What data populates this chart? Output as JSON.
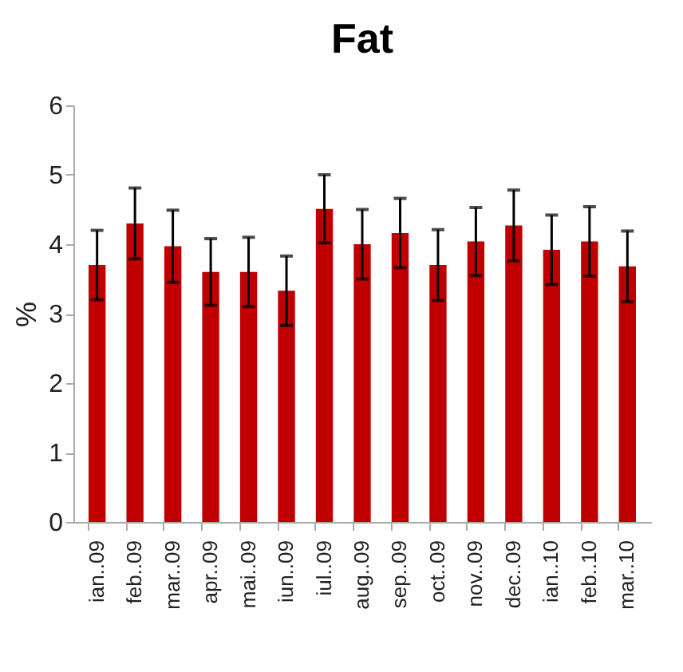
{
  "chart_data": {
    "type": "bar",
    "title": "Fat",
    "ylabel": "%",
    "categories": [
      "ian..09",
      "feb..09",
      "mar..09",
      "apr..09",
      "mai..09",
      "iun..09",
      "iul..09",
      "aug..09",
      "sep..09",
      "oct..09",
      "nov..09",
      "dec..09",
      "ian..10",
      "feb..10",
      "mar..10"
    ],
    "values": [
      3.7,
      4.3,
      3.97,
      3.6,
      3.6,
      3.33,
      4.51,
      4.0,
      4.16,
      3.7,
      4.04,
      4.27,
      3.92,
      4.04,
      3.68
    ],
    "errors": [
      0.5,
      0.51,
      0.52,
      0.48,
      0.5,
      0.5,
      0.49,
      0.5,
      0.5,
      0.51,
      0.49,
      0.51,
      0.5,
      0.5,
      0.51
    ],
    "color": "#c00000",
    "ylim": [
      0,
      6
    ],
    "yticks": [
      0,
      1,
      2,
      3,
      4,
      5,
      6
    ],
    "grid": false
  }
}
